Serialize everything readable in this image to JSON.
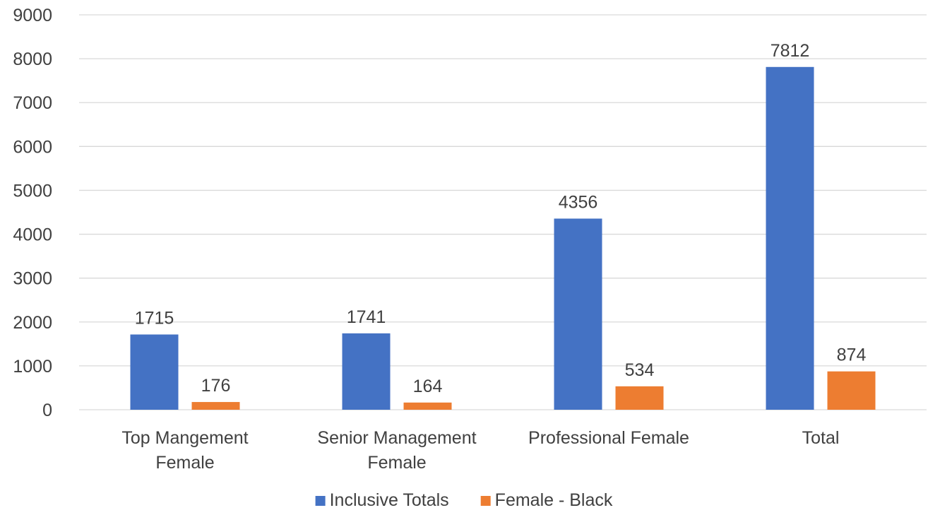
{
  "chart_data": {
    "type": "bar",
    "categories": [
      [
        "Top Mangement",
        "Female"
      ],
      [
        "Senior Management",
        "Female"
      ],
      [
        "Professional Female"
      ],
      [
        "Total"
      ]
    ],
    "series": [
      {
        "name": "Inclusive Totals",
        "values": [
          1715,
          1741,
          4356,
          7812
        ],
        "color": "#4472c4"
      },
      {
        "name": "Female - Black",
        "values": [
          176,
          164,
          534,
          874
        ],
        "color": "#ed7d31"
      }
    ],
    "y_ticks": [
      "0",
      "1000",
      "2000",
      "3000",
      "4000",
      "5000",
      "6000",
      "7000",
      "8000",
      "9000"
    ],
    "ylim": [
      0,
      9000
    ],
    "grid": true,
    "legend_position": "bottom",
    "data_labels": true
  }
}
